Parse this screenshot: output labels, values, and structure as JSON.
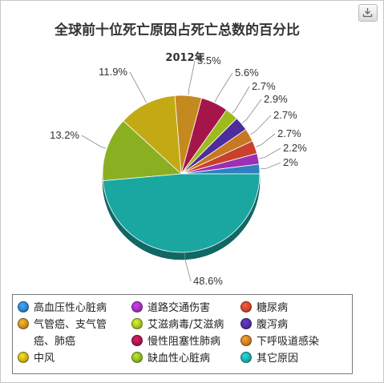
{
  "title": "全球前十位死亡原因占死亡总数的百分比",
  "subtitle": "2012年",
  "export_icon": "download-icon",
  "chart_data": {
    "type": "pie",
    "slices": [
      {
        "name": "高血压性心脏病",
        "value": 2,
        "label": "2%",
        "color": "#2f7fc1"
      },
      {
        "name": "道路交通伤害",
        "value": 2.2,
        "label": "2.2%",
        "color": "#9b2fb5"
      },
      {
        "name": "糖尿病",
        "value": 2.7,
        "label": "2.7%",
        "color": "#c8422b"
      },
      {
        "name": "下呼吸道感染",
        "value": 2.7,
        "label": "2.7%",
        "color": "#c77822"
      },
      {
        "name": "腹泻病",
        "value": 2.9,
        "label": "2.9%",
        "color": "#4d2c9c"
      },
      {
        "name": "艾滋病毒/艾滋病",
        "value": 2.7,
        "label": "2.7%",
        "color": "#9ebb1e"
      },
      {
        "name": "慢性阻塞性肺病",
        "value": 5.6,
        "label": "5.6%",
        "color": "#a5154a"
      },
      {
        "name": "气管癌、支气管癌、肺癌",
        "value": 5.5,
        "label": "5.5%",
        "color": "#c48a1f"
      },
      {
        "name": "中风",
        "value": 11.9,
        "label": "11.9%",
        "color": "#c3aa15"
      },
      {
        "name": "缺血性心脏病",
        "value": 13.2,
        "label": "13.2%",
        "color": "#8ab022"
      },
      {
        "name": "其它原因",
        "value": 48.6,
        "label": "48.6%",
        "color": "#1aa7a2"
      }
    ],
    "legend": {
      "position": "bottom",
      "items": [
        {
          "label": "高血压性心脏病",
          "color": "#2f7fc1"
        },
        {
          "label": "道路交通伤害",
          "color": "#9b2fb5"
        },
        {
          "label": "糖尿病",
          "color": "#c8422b"
        },
        {
          "label": "气管癌、支气管癌、肺癌",
          "color": "#c48a1f"
        },
        {
          "label": "艾滋病毒/艾滋病",
          "color": "#9ebb1e"
        },
        {
          "label": "腹泻病",
          "color": "#4d2c9c"
        },
        {
          "label": "慢性阻塞性肺病",
          "color": "#a5154a"
        },
        {
          "label": "下呼吸道感染",
          "color": "#c77822"
        },
        {
          "label": "中风",
          "color": "#c3aa15"
        },
        {
          "label": "缺血性心脏病",
          "color": "#8ab022"
        },
        {
          "label": "其它原因",
          "color": "#1aa7a2"
        }
      ]
    }
  }
}
